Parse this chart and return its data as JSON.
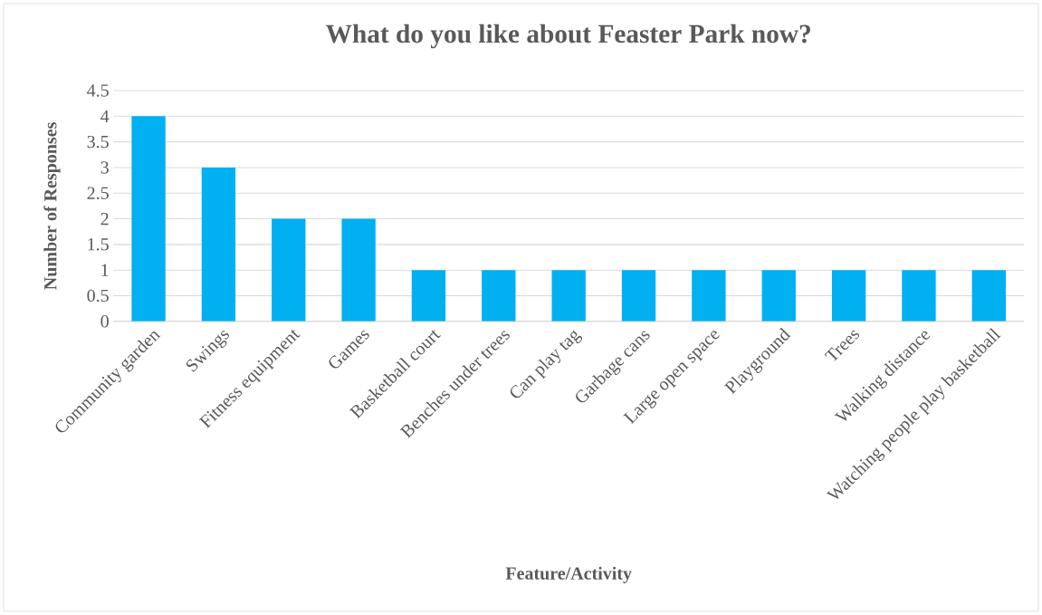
{
  "chart_data": {
    "type": "bar",
    "title": "What do you like about Feaster Park now?",
    "xlabel": "Feature/Activity",
    "ylabel": "Number of Responses",
    "categories": [
      "Community garden",
      "Swings",
      "Fitness equipment",
      "Games",
      "Basketball court",
      "Benches under trees",
      "Can play tag",
      "Garbage cans",
      "Large open space",
      "Playground",
      "Trees",
      "Walking distance",
      "Watching people play basketball"
    ],
    "values": [
      4,
      3,
      2,
      2,
      1,
      1,
      1,
      1,
      1,
      1,
      1,
      1,
      1
    ],
    "color": "#00b0f0",
    "ylim": [
      0,
      4.5
    ],
    "yticks": [
      0,
      0.5,
      1,
      1.5,
      2,
      2.5,
      3,
      3.5,
      4,
      4.5
    ],
    "grid": "y"
  }
}
